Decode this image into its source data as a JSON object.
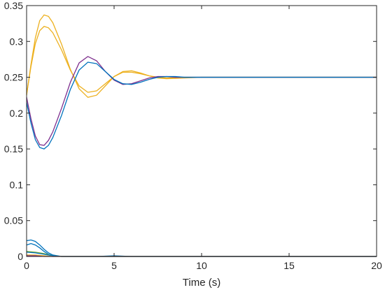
{
  "chart_data": {
    "type": "line",
    "title": "",
    "xlabel": "Time (s)",
    "ylabel": "",
    "xlim": [
      0,
      20
    ],
    "ylim": [
      0,
      0.35
    ],
    "grid": false,
    "legend": "none",
    "x_ticks": [
      0,
      5,
      10,
      15,
      20
    ],
    "x_tick_labels": [
      "0",
      "5",
      "10",
      "15",
      "20"
    ],
    "y_ticks": [
      0,
      0.05,
      0.1,
      0.15,
      0.2,
      0.25,
      0.3,
      0.35
    ],
    "y_tick_labels": [
      "0",
      "0.05",
      "0.1",
      "0.15",
      "0.2",
      "0.25",
      "0.3",
      "0.35"
    ],
    "colors": {
      "axes": "#262626",
      "background": "#ffffff"
    },
    "series": [
      {
        "color": "#EDB120",
        "x": [
          0,
          0.25,
          0.5,
          0.75,
          1.0,
          1.25,
          1.5,
          2.0,
          2.5,
          3.0,
          3.5,
          4.0,
          4.5,
          5.0,
          5.5,
          6.0,
          6.5,
          7.0,
          7.5,
          8.0,
          9.0,
          10,
          12,
          15,
          20
        ],
        "y": [
          0.225,
          0.268,
          0.305,
          0.329,
          0.337,
          0.335,
          0.326,
          0.296,
          0.261,
          0.234,
          0.222,
          0.225,
          0.238,
          0.251,
          0.258,
          0.259,
          0.256,
          0.252,
          0.249,
          0.248,
          0.249,
          0.25,
          0.25,
          0.25,
          0.25
        ]
      },
      {
        "color": "#EDB120",
        "x": [
          0,
          0.25,
          0.5,
          0.75,
          1.0,
          1.25,
          1.5,
          2.0,
          2.5,
          3.0,
          3.5,
          4.0,
          4.5,
          5.0,
          5.5,
          6.0,
          6.5,
          7.0,
          7.5,
          8.0,
          9.0,
          10,
          12,
          15,
          20
        ],
        "y": [
          0.226,
          0.265,
          0.297,
          0.315,
          0.321,
          0.319,
          0.312,
          0.288,
          0.26,
          0.238,
          0.229,
          0.231,
          0.241,
          0.251,
          0.257,
          0.257,
          0.255,
          0.252,
          0.25,
          0.249,
          0.25,
          0.25,
          0.25,
          0.25,
          0.25
        ]
      },
      {
        "color": "#7E2F8E",
        "x": [
          0,
          0.25,
          0.5,
          0.75,
          1.0,
          1.25,
          1.5,
          2.0,
          2.5,
          3.0,
          3.5,
          4.0,
          4.5,
          5.0,
          5.5,
          6.0,
          6.5,
          7.0,
          7.5,
          8.0,
          8.5,
          9.0,
          10,
          12,
          15,
          20
        ],
        "y": [
          0.222,
          0.192,
          0.168,
          0.156,
          0.155,
          0.162,
          0.174,
          0.207,
          0.243,
          0.27,
          0.279,
          0.273,
          0.258,
          0.246,
          0.24,
          0.241,
          0.245,
          0.249,
          0.251,
          0.251,
          0.25,
          0.25,
          0.25,
          0.25,
          0.25,
          0.25
        ]
      },
      {
        "color": "#0072BD",
        "x": [
          0,
          0.25,
          0.5,
          0.75,
          1.0,
          1.25,
          1.5,
          2.0,
          2.5,
          3.0,
          3.5,
          4.0,
          4.5,
          5.0,
          5.5,
          6.0,
          6.5,
          7.0,
          7.5,
          8.0,
          8.5,
          9.0,
          10,
          12,
          15,
          20
        ],
        "y": [
          0.215,
          0.186,
          0.163,
          0.152,
          0.15,
          0.155,
          0.166,
          0.197,
          0.233,
          0.26,
          0.271,
          0.269,
          0.258,
          0.247,
          0.241,
          0.24,
          0.243,
          0.247,
          0.25,
          0.251,
          0.251,
          0.25,
          0.25,
          0.25,
          0.25,
          0.25
        ]
      },
      {
        "color": "#0072BD",
        "x": [
          0,
          0.25,
          0.5,
          0.75,
          1.0,
          1.25,
          1.5,
          2.0,
          2.5,
          3.0,
          4.0,
          5.0,
          6.0,
          8.0,
          20
        ],
        "y": [
          0.022,
          0.023,
          0.021,
          0.016,
          0.01,
          0.005,
          0.002,
          0.0,
          0.0,
          0.0,
          0.0,
          0.001,
          0.0,
          0.0,
          0.0
        ]
      },
      {
        "color": "#0072BD",
        "x": [
          0,
          0.25,
          0.5,
          0.75,
          1.0,
          1.25,
          1.5,
          2.0,
          2.5,
          3.0,
          4.0,
          5.0,
          6.0,
          8.0,
          20
        ],
        "y": [
          0.016,
          0.018,
          0.016,
          0.012,
          0.007,
          0.003,
          0.001,
          0.0,
          0.0,
          0.0,
          0.0,
          0.0,
          0.0,
          0.0,
          0.0
        ]
      },
      {
        "color": "#77AC30",
        "x": [
          0,
          0.5,
          1.0,
          1.5,
          2.0,
          3.0,
          5.0,
          8.0,
          20
        ],
        "y": [
          0.007,
          0.006,
          0.004,
          0.001,
          0.0,
          0.0,
          0.0,
          0.0,
          0.0
        ]
      },
      {
        "color": "#0072BD",
        "x": [
          0,
          0.5,
          1.0,
          1.5,
          2.0,
          3.0,
          5.0,
          8.0,
          20
        ],
        "y": [
          0.006,
          0.005,
          0.003,
          0.001,
          0.0,
          0.0,
          0.0,
          0.0,
          0.0
        ]
      },
      {
        "color": "#EDB120",
        "x": [
          0,
          0.5,
          1.0,
          1.5,
          2.0,
          3.0,
          5.0,
          8.0,
          20
        ],
        "y": [
          0.002,
          0.002,
          0.001,
          0.0,
          0.0,
          0.0,
          0.0,
          0.0,
          0.0
        ]
      },
      {
        "color": "#7E2F8E",
        "x": [
          0,
          0.5,
          1.0,
          1.5,
          2.0,
          3.0,
          5.0,
          8.0,
          20
        ],
        "y": [
          0.001,
          0.001,
          0.0,
          0.0,
          0.0,
          0.0,
          0.0,
          0.0,
          0.0
        ]
      }
    ]
  }
}
